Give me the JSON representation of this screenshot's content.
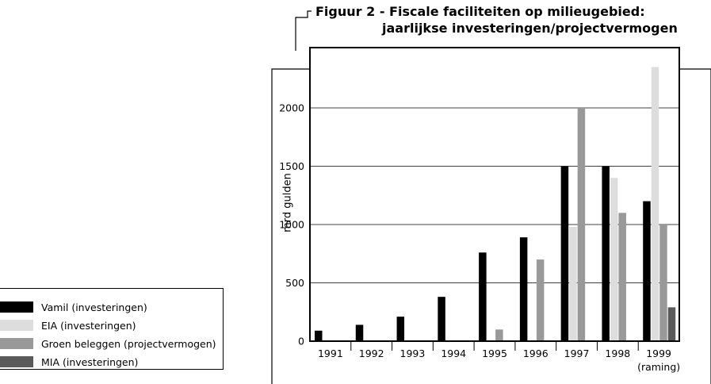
{
  "chart_data": {
    "type": "bar",
    "title": "Figuur 2 - Fiscale faciliteiten op milieugebied:",
    "subtitle": "jaarlijkse investeringen/projectvermogen",
    "xlabel": "",
    "ylabel": "mrd gulden",
    "ylim": [
      0,
      2500
    ],
    "yticks": [
      0,
      500,
      1000,
      1500,
      2000
    ],
    "grid": true,
    "legend_position": "bottom-left",
    "categories": [
      "1991",
      "1992",
      "1993",
      "1994",
      "1995",
      "1996",
      "1997",
      "1998",
      "1999"
    ],
    "category_notes": [
      "",
      "",
      "",
      "",
      "",
      "",
      "",
      "",
      "(raming)"
    ],
    "series": [
      {
        "name": "Vamil (investeringen)",
        "color": "#000000",
        "values": [
          90,
          140,
          210,
          380,
          760,
          890,
          1500,
          1500,
          1200
        ]
      },
      {
        "name": "EIA (investeringen)",
        "color": "#dddddd",
        "values": [
          0,
          0,
          0,
          0,
          0,
          0,
          980,
          1400,
          2350
        ]
      },
      {
        "name": "Groen beleggen (projectvermogen)",
        "color": "#999999",
        "values": [
          0,
          0,
          0,
          0,
          100,
          700,
          2000,
          1100,
          1000
        ]
      },
      {
        "name": "MIA (investeringen)",
        "color": "#5a5a5a",
        "values": [
          0,
          0,
          0,
          0,
          0,
          0,
          0,
          0,
          290
        ]
      }
    ]
  }
}
